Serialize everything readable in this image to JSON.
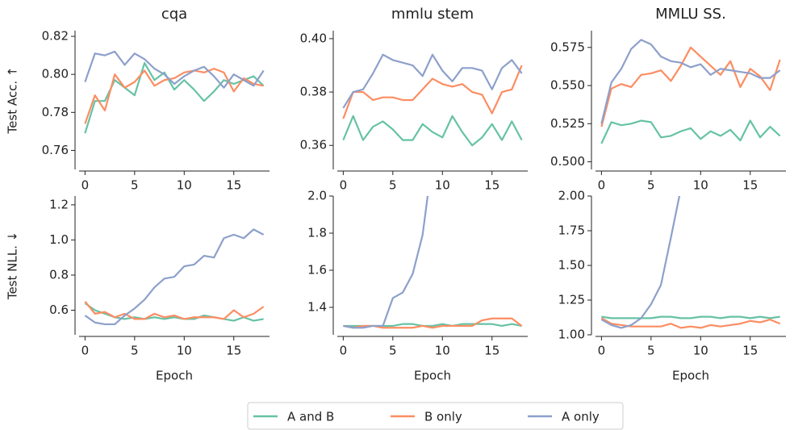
{
  "chart_data": [
    {
      "type": "line",
      "title": "cqa",
      "ylabel": "Test Acc. ↑",
      "x": [
        0,
        1,
        2,
        3,
        4,
        5,
        6,
        7,
        8,
        9,
        10,
        11,
        12,
        13,
        14,
        15,
        16,
        17,
        18
      ],
      "series": [
        {
          "name": "A and B",
          "color": "#66c2a5",
          "values": [
            0.769,
            0.786,
            0.786,
            0.797,
            0.793,
            0.789,
            0.806,
            0.797,
            0.801,
            0.792,
            0.797,
            0.792,
            0.786,
            0.791,
            0.797,
            0.795,
            0.797,
            0.799,
            0.794
          ]
        },
        {
          "name": "B only",
          "color": "#fc8d62",
          "values": [
            0.774,
            0.789,
            0.781,
            0.8,
            0.793,
            0.796,
            0.802,
            0.794,
            0.797,
            0.798,
            0.801,
            0.802,
            0.801,
            0.803,
            0.801,
            0.791,
            0.798,
            0.795,
            0.794
          ]
        },
        {
          "name": "A only",
          "color": "#8da0cb",
          "values": [
            0.796,
            0.811,
            0.81,
            0.812,
            0.805,
            0.811,
            0.808,
            0.803,
            0.8,
            0.795,
            0.799,
            0.802,
            0.804,
            0.799,
            0.793,
            0.8,
            0.797,
            0.794,
            0.802
          ]
        }
      ],
      "xlim": [
        -0.6,
        18.6
      ],
      "ylim": [
        0.75,
        0.823
      ],
      "xticks": [
        0,
        5,
        10,
        15
      ],
      "yticks": [
        0.76,
        0.78,
        {
          "value": 0.8,
          "label": "0.80"
        },
        0.82
      ]
    },
    {
      "type": "line",
      "title": "mmlu stem",
      "x": [
        0,
        1,
        2,
        3,
        4,
        5,
        6,
        7,
        8,
        9,
        10,
        11,
        12,
        13,
        14,
        15,
        16,
        17,
        18
      ],
      "series": [
        {
          "name": "A and B",
          "color": "#66c2a5",
          "values": [
            0.362,
            0.371,
            0.362,
            0.367,
            0.369,
            0.366,
            0.362,
            0.362,
            0.368,
            0.365,
            0.363,
            0.371,
            0.365,
            0.36,
            0.363,
            0.368,
            0.362,
            0.369,
            0.362
          ]
        },
        {
          "name": "B only",
          "color": "#fc8d62",
          "values": [
            0.37,
            0.38,
            0.38,
            0.377,
            0.378,
            0.378,
            0.377,
            0.377,
            0.381,
            0.385,
            0.383,
            0.382,
            0.383,
            0.38,
            0.379,
            0.372,
            0.38,
            0.381,
            0.39
          ]
        },
        {
          "name": "A only",
          "color": "#8da0cb",
          "values": [
            0.374,
            0.38,
            0.381,
            0.387,
            0.394,
            0.392,
            0.391,
            0.39,
            0.386,
            0.394,
            0.388,
            0.384,
            0.389,
            0.389,
            0.388,
            0.381,
            0.389,
            0.392,
            0.387
          ]
        }
      ],
      "xlim": [
        -0.6,
        18.6
      ],
      "ylim": [
        0.351,
        0.403
      ],
      "xticks": [
        0,
        5,
        10,
        15
      ],
      "yticks": [
        0.36,
        0.38,
        {
          "value": 0.4,
          "label": "0.40"
        }
      ]
    },
    {
      "type": "line",
      "title": "MMLU SS.",
      "x": [
        0,
        1,
        2,
        3,
        4,
        5,
        6,
        7,
        8,
        9,
        10,
        11,
        12,
        13,
        14,
        15,
        16,
        17,
        18
      ],
      "series": [
        {
          "name": "A and B",
          "color": "#66c2a5",
          "values": [
            0.512,
            0.526,
            0.524,
            0.525,
            0.527,
            0.526,
            0.516,
            0.517,
            0.52,
            0.522,
            0.515,
            0.52,
            0.517,
            0.521,
            0.514,
            0.527,
            0.516,
            0.523,
            0.517
          ]
        },
        {
          "name": "B only",
          "color": "#fc8d62",
          "values": [
            0.523,
            0.548,
            0.551,
            0.549,
            0.557,
            0.558,
            0.56,
            0.553,
            0.563,
            0.575,
            0.569,
            0.563,
            0.557,
            0.566,
            0.549,
            0.561,
            0.556,
            0.547,
            0.567
          ]
        },
        {
          "name": "A only",
          "color": "#8da0cb",
          "values": [
            0.525,
            0.552,
            0.561,
            0.574,
            0.58,
            0.577,
            0.569,
            0.566,
            0.565,
            0.562,
            0.564,
            0.557,
            0.561,
            0.56,
            0.559,
            0.558,
            0.555,
            0.555,
            0.56
          ]
        }
      ],
      "xlim": [
        -0.6,
        18.6
      ],
      "ylim": [
        0.495,
        0.586
      ],
      "xticks": [
        0,
        5,
        10,
        15
      ],
      "yticks": [
        {
          "value": 0.5,
          "label": "0.500"
        },
        0.525,
        {
          "value": 0.55,
          "label": "0.550"
        },
        0.575
      ]
    },
    {
      "type": "line",
      "xlabel": "Epoch",
      "ylabel": "Test NLL. ↓",
      "x": [
        0,
        1,
        2,
        3,
        4,
        5,
        6,
        7,
        8,
        9,
        10,
        11,
        12,
        13,
        14,
        15,
        16,
        17,
        18
      ],
      "series": [
        {
          "name": "A and B",
          "color": "#66c2a5",
          "values": [
            0.64,
            0.6,
            0.58,
            0.56,
            0.55,
            0.56,
            0.55,
            0.56,
            0.55,
            0.56,
            0.55,
            0.55,
            0.57,
            0.56,
            0.55,
            0.54,
            0.56,
            0.54,
            0.55
          ]
        },
        {
          "name": "B only",
          "color": "#fc8d62",
          "values": [
            0.65,
            0.58,
            0.59,
            0.56,
            0.58,
            0.55,
            0.55,
            0.58,
            0.56,
            0.57,
            0.55,
            0.56,
            0.56,
            0.56,
            0.55,
            0.6,
            0.56,
            0.58,
            0.62
          ]
        },
        {
          "name": "A only",
          "color": "#8da0cb",
          "values": [
            0.57,
            0.53,
            0.52,
            0.52,
            0.57,
            0.61,
            0.66,
            0.73,
            0.78,
            0.79,
            0.85,
            0.86,
            0.91,
            0.9,
            1.01,
            1.03,
            1.01,
            1.06,
            1.03
          ]
        }
      ],
      "xlim": [
        -0.6,
        18.6
      ],
      "ylim": [
        0.46,
        1.25
      ],
      "xticks": [
        0,
        5,
        10,
        15
      ],
      "yticks": [
        0.6,
        0.8,
        {
          "value": 1.0,
          "label": "1.0"
        },
        1.2
      ]
    },
    {
      "type": "line",
      "xlabel": "Epoch",
      "x": [
        0,
        1,
        2,
        3,
        4,
        5,
        6,
        7,
        8,
        9,
        10,
        11,
        12,
        13,
        14,
        15,
        16,
        17,
        18
      ],
      "series": [
        {
          "name": "A and B",
          "color": "#66c2a5",
          "values": [
            1.3,
            1.3,
            1.3,
            1.3,
            1.3,
            1.3,
            1.31,
            1.31,
            1.3,
            1.3,
            1.31,
            1.3,
            1.31,
            1.31,
            1.31,
            1.31,
            1.3,
            1.31,
            1.3
          ]
        },
        {
          "name": "B only",
          "color": "#fc8d62",
          "values": [
            1.3,
            1.29,
            1.3,
            1.3,
            1.29,
            1.29,
            1.29,
            1.29,
            1.3,
            1.29,
            1.3,
            1.3,
            1.3,
            1.3,
            1.33,
            1.34,
            1.34,
            1.34,
            1.3
          ]
        },
        {
          "name": "A only",
          "color": "#8da0cb",
          "values": [
            1.3,
            1.29,
            1.29,
            1.3,
            1.3,
            1.45,
            1.48,
            1.58,
            1.79,
            2.2,
            null,
            null,
            null,
            null,
            null,
            null,
            null,
            null,
            null
          ]
        }
      ],
      "xlim": [
        -0.6,
        18.6
      ],
      "ylim": [
        1.252,
        2.0
      ],
      "xticks": [
        0,
        5,
        10,
        15
      ],
      "yticks": [
        1.4,
        1.6,
        1.8,
        {
          "value": 2.0,
          "label": "2.0"
        }
      ]
    },
    {
      "type": "line",
      "xlabel": "Epoch",
      "x": [
        0,
        1,
        2,
        3,
        4,
        5,
        6,
        7,
        8,
        9,
        10,
        11,
        12,
        13,
        14,
        15,
        16,
        17,
        18
      ],
      "series": [
        {
          "name": "A and B",
          "color": "#66c2a5",
          "values": [
            1.13,
            1.12,
            1.12,
            1.12,
            1.12,
            1.12,
            1.13,
            1.13,
            1.12,
            1.12,
            1.13,
            1.13,
            1.12,
            1.13,
            1.13,
            1.12,
            1.13,
            1.12,
            1.13
          ]
        },
        {
          "name": "B only",
          "color": "#fc8d62",
          "values": [
            1.12,
            1.08,
            1.07,
            1.06,
            1.06,
            1.06,
            1.06,
            1.08,
            1.05,
            1.06,
            1.05,
            1.07,
            1.06,
            1.07,
            1.08,
            1.1,
            1.09,
            1.11,
            1.08
          ]
        },
        {
          "name": "A only",
          "color": "#8da0cb",
          "values": [
            1.11,
            1.07,
            1.05,
            1.07,
            1.12,
            1.22,
            1.36,
            1.7,
            2.05,
            null,
            null,
            null,
            null,
            null,
            null,
            null,
            null,
            null,
            null
          ]
        }
      ],
      "xlim": [
        -0.6,
        18.6
      ],
      "ylim": [
        1.0,
        2.0
      ],
      "xticks": [
        0,
        5,
        10,
        15
      ],
      "yticks": [
        {
          "value": 1.0,
          "label": "1.00"
        },
        1.25,
        {
          "value": 1.5,
          "label": "1.50"
        },
        1.75,
        {
          "value": 2.0,
          "label": "2.00"
        }
      ]
    }
  ]
}
